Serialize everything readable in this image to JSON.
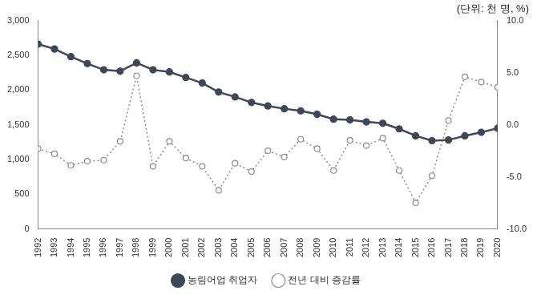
{
  "chart_data": {
    "type": "line",
    "subtitle": "(단위: 천 명, %)",
    "categories": [
      "1992",
      "1993",
      "1994",
      "1995",
      "1996",
      "1997",
      "1998",
      "1999",
      "2000",
      "2001",
      "2002",
      "2003",
      "2004",
      "2005",
      "2006",
      "2007",
      "2008",
      "2009",
      "2010",
      "2011",
      "2012",
      "2013",
      "2014",
      "2015",
      "2016",
      "2017",
      "2018",
      "2019",
      "2020"
    ],
    "series": [
      {
        "name": "농림어업 취업자",
        "color": "#3d4756",
        "marker": "circle",
        "line_style": "solid",
        "values": [
          2660,
          2590,
          2480,
          2380,
          2290,
          2270,
          2390,
          2290,
          2260,
          2180,
          2100,
          1970,
          1900,
          1820,
          1770,
          1730,
          1700,
          1650,
          1580,
          1570,
          1540,
          1520,
          1440,
          1340,
          1270,
          1280,
          1340,
          1390,
          1450
        ]
      },
      {
        "name": "전년 대비 증감률",
        "color": "#8c8c8c",
        "marker": "open_circle",
        "line_style": "dotted",
        "axis": "y2",
        "values": [
          -2.3,
          -2.8,
          -3.9,
          -3.5,
          -3.4,
          -1.6,
          4.7,
          -4.0,
          -1.6,
          -3.2,
          -4.0,
          -6.3,
          -3.7,
          -4.5,
          -2.5,
          -3.1,
          -1.4,
          -2.3,
          -4.4,
          -1.5,
          -2.0,
          -1.3,
          -4.4,
          -7.5,
          -4.9,
          0.4,
          4.6,
          4.1,
          3.6
        ]
      }
    ],
    "ylim": [
      0,
      3000
    ],
    "yticks": [
      0,
      500,
      {
        "value": 1000,
        "label": "1,000"
      },
      {
        "value": 1500,
        "label": "1,500"
      },
      {
        "value": 2000,
        "label": "2,000"
      },
      {
        "value": 2500,
        "label": "2,500"
      },
      {
        "value": 3000,
        "label": "3,000"
      }
    ],
    "y2lim": [
      -10,
      10
    ],
    "y2ticks": [
      {
        "value": -10,
        "label": "-10.0"
      },
      {
        "value": -5,
        "label": "-5.0"
      },
      {
        "value": 0,
        "label": "0.0"
      },
      {
        "value": 5,
        "label": "5.0"
      },
      {
        "value": 10,
        "label": "10.0"
      }
    ],
    "grid": false,
    "legend": "bottom"
  }
}
